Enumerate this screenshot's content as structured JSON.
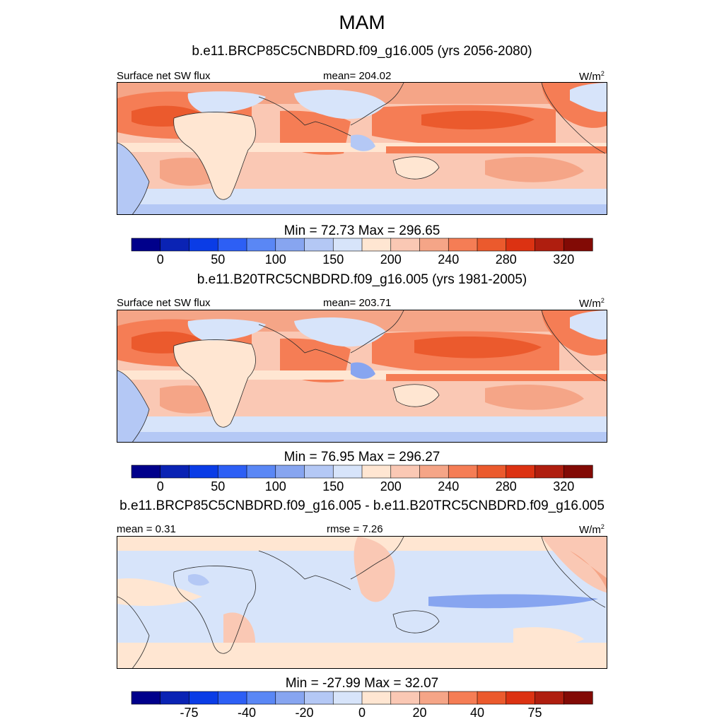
{
  "figure": {
    "season": "MAM"
  },
  "panels": [
    {
      "title": "b.e11.BRCP85C5CNBDRD.f09_g16.005 (yrs 2056-2080)",
      "left_label": "Surface net SW flux",
      "center_label": "mean= 204.02",
      "units_base": "W/m",
      "units_exp": "2",
      "colorbar_title": "Min =  72.73 Max = 296.65",
      "colorbar_labels": [
        "0",
        "50",
        "100",
        "150",
        "200",
        "240",
        "280",
        "320"
      ]
    },
    {
      "title": "b.e11.B20TRC5CNBDRD.f09_g16.005 (yrs 1981-2005)",
      "left_label": "Surface net SW flux",
      "center_label": "mean= 203.71",
      "units_base": "W/m",
      "units_exp": "2",
      "colorbar_title": "Min =  76.95 Max = 296.27",
      "colorbar_labels": [
        "0",
        "50",
        "100",
        "150",
        "200",
        "240",
        "280",
        "320"
      ]
    },
    {
      "title": "b.e11.BRCP85C5CNBDRD.f09_g16.005 - b.e11.B20TRC5CNBDRD.f09_g16.005",
      "left_label": "mean =   0.31",
      "center_label": "rmse =   7.26",
      "units_base": "W/m",
      "units_exp": "2",
      "colorbar_title": "Min = -27.99 Max =  32.07",
      "colorbar_labels": [
        "-75",
        "-40",
        "-20",
        "0",
        "20",
        "40",
        "75"
      ]
    }
  ],
  "colors": {
    "palette": [
      "#00008b",
      "#0a23b4",
      "#0a3ce6",
      "#2d5ff5",
      "#5a87f5",
      "#87a5f0",
      "#b4c8f5",
      "#d7e4fa",
      "#ffe6d2",
      "#fac8b4",
      "#f5a587",
      "#f57d55",
      "#eb5a2d",
      "#dc3212",
      "#af1e0f",
      "#820a05"
    ],
    "ocean_high": "#eb5a2d",
    "ocean_mid": "#f5a587",
    "ocean_low": "#fac8b4",
    "cool": "#b4c8f5",
    "cooler": "#87a5f0",
    "neutral_warm": "#ffe6d2",
    "neutral_cool": "#d7e4fa",
    "coast": "#2b2b2b"
  }
}
